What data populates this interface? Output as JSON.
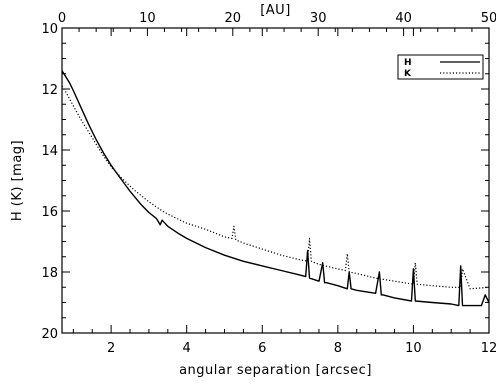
{
  "chart_data": {
    "type": "line",
    "title": "",
    "xlabel": "angular separation [arcsec]",
    "ylabel": "H (K) [mag]",
    "x2label": "[AU]",
    "xlim": [
      0.7,
      12.0
    ],
    "ylim": [
      10,
      20
    ],
    "y_inverted": true,
    "x2lim": [
      0,
      50
    ],
    "xticks": [
      2,
      4,
      6,
      8,
      10,
      12
    ],
    "xtick_labels": [
      "2",
      "4",
      "6",
      "8",
      "10",
      "12"
    ],
    "yticks": [
      10,
      12,
      14,
      16,
      18,
      20
    ],
    "ytick_labels": [
      "10",
      "12",
      "14",
      "16",
      "18",
      "20"
    ],
    "x2ticks": [
      0,
      10,
      20,
      30,
      40,
      50
    ],
    "x2tick_labels": [
      "0",
      "10",
      "20",
      "30",
      "40",
      "50"
    ],
    "grid": false,
    "legend_position": "top-right",
    "series": [
      {
        "name": "H",
        "style": "solid",
        "x": [
          0.7,
          0.8,
          0.9,
          1.0,
          1.2,
          1.4,
          1.6,
          1.8,
          2.0,
          2.2,
          2.5,
          2.8,
          3.0,
          3.2,
          3.3,
          3.35,
          3.5,
          3.8,
          4.0,
          4.5,
          5.0,
          5.5,
          6.0,
          6.5,
          7.0,
          7.15,
          7.2,
          7.25,
          7.5,
          7.6,
          7.65,
          7.7,
          8.0,
          8.25,
          8.3,
          8.35,
          8.5,
          9.0,
          9.1,
          9.15,
          9.2,
          9.5,
          9.95,
          10.0,
          10.05,
          10.5,
          11.0,
          11.2,
          11.25,
          11.3,
          11.5,
          11.8,
          11.9,
          12.0
        ],
        "y": [
          11.4,
          11.6,
          11.8,
          12.05,
          12.6,
          13.15,
          13.65,
          14.1,
          14.5,
          14.85,
          15.35,
          15.8,
          16.05,
          16.25,
          16.45,
          16.3,
          16.5,
          16.75,
          16.9,
          17.2,
          17.45,
          17.65,
          17.8,
          17.95,
          18.1,
          18.15,
          17.3,
          18.2,
          18.3,
          17.7,
          18.35,
          18.35,
          18.45,
          18.55,
          18.0,
          18.55,
          18.6,
          18.7,
          18.0,
          18.75,
          18.75,
          18.85,
          18.95,
          17.9,
          18.95,
          19.0,
          19.05,
          19.1,
          17.8,
          19.1,
          19.1,
          19.1,
          18.75,
          19.0
        ]
      },
      {
        "name": "K",
        "style": "dotted",
        "x": [
          0.7,
          0.8,
          1.0,
          1.2,
          1.4,
          1.6,
          1.8,
          2.0,
          2.3,
          2.6,
          3.0,
          3.3,
          3.5,
          4.0,
          4.5,
          5.0,
          5.2,
          5.25,
          5.3,
          5.5,
          6.0,
          6.5,
          7.0,
          7.2,
          7.25,
          7.3,
          7.5,
          8.0,
          8.2,
          8.25,
          8.3,
          8.5,
          9.0,
          9.5,
          10.0,
          10.05,
          10.1,
          10.5,
          11.0,
          11.25,
          11.3,
          11.5,
          12.0
        ],
        "y": [
          11.9,
          12.1,
          12.55,
          13.0,
          13.4,
          13.8,
          14.2,
          14.55,
          14.95,
          15.3,
          15.7,
          15.95,
          16.1,
          16.4,
          16.6,
          16.85,
          16.9,
          16.5,
          16.95,
          17.05,
          17.25,
          17.45,
          17.6,
          17.65,
          16.9,
          17.65,
          17.75,
          17.9,
          17.95,
          17.4,
          18.0,
          18.05,
          18.2,
          18.3,
          18.4,
          17.7,
          18.4,
          18.45,
          18.5,
          18.5,
          17.9,
          18.55,
          18.5
        ]
      }
    ]
  }
}
